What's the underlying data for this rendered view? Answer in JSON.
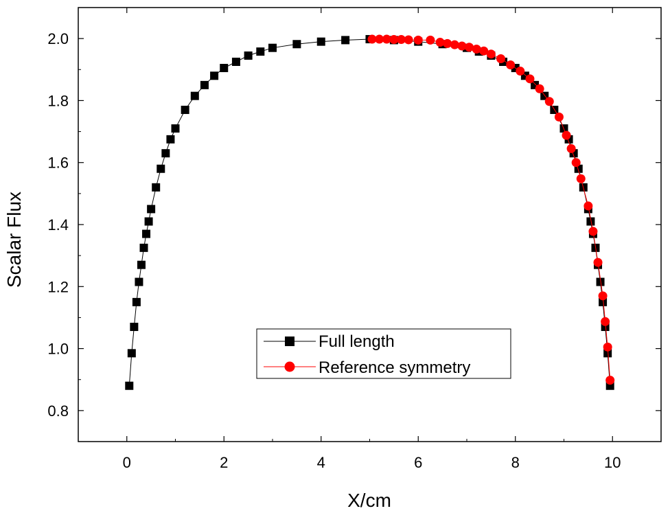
{
  "chart_data": {
    "type": "scatter",
    "xlabel": "X/cm",
    "ylabel": "Scalar Flux",
    "xlim": [
      -1,
      11
    ],
    "ylim": [
      0.7,
      2.1
    ],
    "x_ticks": [
      0,
      2,
      4,
      6,
      8,
      10
    ],
    "x_tick_labels": [
      "0",
      "2",
      "4",
      "6",
      "8",
      "10"
    ],
    "y_ticks": [
      0.8,
      1.0,
      1.2,
      1.4,
      1.6,
      1.8,
      2.0
    ],
    "y_tick_labels": [
      "0.8",
      "1.0",
      "1.2",
      "1.4",
      "1.6",
      "1.8",
      "2.0"
    ],
    "legend_position": "lower-center",
    "series": [
      {
        "name": "Full length",
        "color": "#000000",
        "marker": "square",
        "x": [
          0.05,
          0.1,
          0.15,
          0.2,
          0.25,
          0.3,
          0.35,
          0.4,
          0.45,
          0.5,
          0.6,
          0.7,
          0.8,
          0.9,
          1.0,
          1.2,
          1.4,
          1.6,
          1.8,
          2.0,
          2.25,
          2.5,
          2.75,
          3.0,
          3.5,
          4.0,
          4.5,
          5.0,
          5.5,
          6.0,
          6.5,
          7.0,
          7.25,
          7.5,
          7.75,
          8.0,
          8.2,
          8.4,
          8.6,
          8.8,
          9.0,
          9.1,
          9.2,
          9.3,
          9.4,
          9.5,
          9.55,
          9.6,
          9.65,
          9.7,
          9.75,
          9.8,
          9.85,
          9.9,
          9.95
        ],
        "y": [
          0.88,
          0.985,
          1.07,
          1.15,
          1.215,
          1.27,
          1.325,
          1.37,
          1.41,
          1.45,
          1.52,
          1.58,
          1.63,
          1.675,
          1.71,
          1.77,
          1.815,
          1.85,
          1.88,
          1.905,
          1.925,
          1.945,
          1.958,
          1.97,
          1.982,
          1.99,
          1.995,
          1.998,
          1.995,
          1.99,
          1.982,
          1.97,
          1.958,
          1.945,
          1.925,
          1.905,
          1.88,
          1.85,
          1.815,
          1.77,
          1.71,
          1.675,
          1.63,
          1.58,
          1.52,
          1.45,
          1.41,
          1.37,
          1.325,
          1.27,
          1.215,
          1.15,
          1.07,
          0.985,
          0.88
        ]
      },
      {
        "name": "Reference symmetry",
        "color": "#ff0000",
        "marker": "circle",
        "x": [
          5.05,
          5.2,
          5.35,
          5.5,
          5.65,
          5.8,
          6.0,
          6.25,
          6.45,
          6.6,
          6.75,
          6.9,
          7.05,
          7.2,
          7.35,
          7.5,
          7.7,
          7.9,
          8.1,
          8.3,
          8.5,
          8.7,
          8.9,
          9.05,
          9.15,
          9.25,
          9.35,
          9.5,
          9.6,
          9.7,
          9.8,
          9.85,
          9.9,
          9.95
        ],
        "y": [
          1.998,
          1.998,
          1.998,
          1.997,
          1.997,
          1.996,
          1.995,
          1.995,
          1.988,
          1.984,
          1.98,
          1.976,
          1.972,
          1.966,
          1.96,
          1.95,
          1.935,
          1.915,
          1.895,
          1.87,
          1.838,
          1.797,
          1.747,
          1.688,
          1.645,
          1.6,
          1.548,
          1.46,
          1.378,
          1.278,
          1.17,
          1.087,
          1.005,
          0.898
        ]
      }
    ]
  }
}
